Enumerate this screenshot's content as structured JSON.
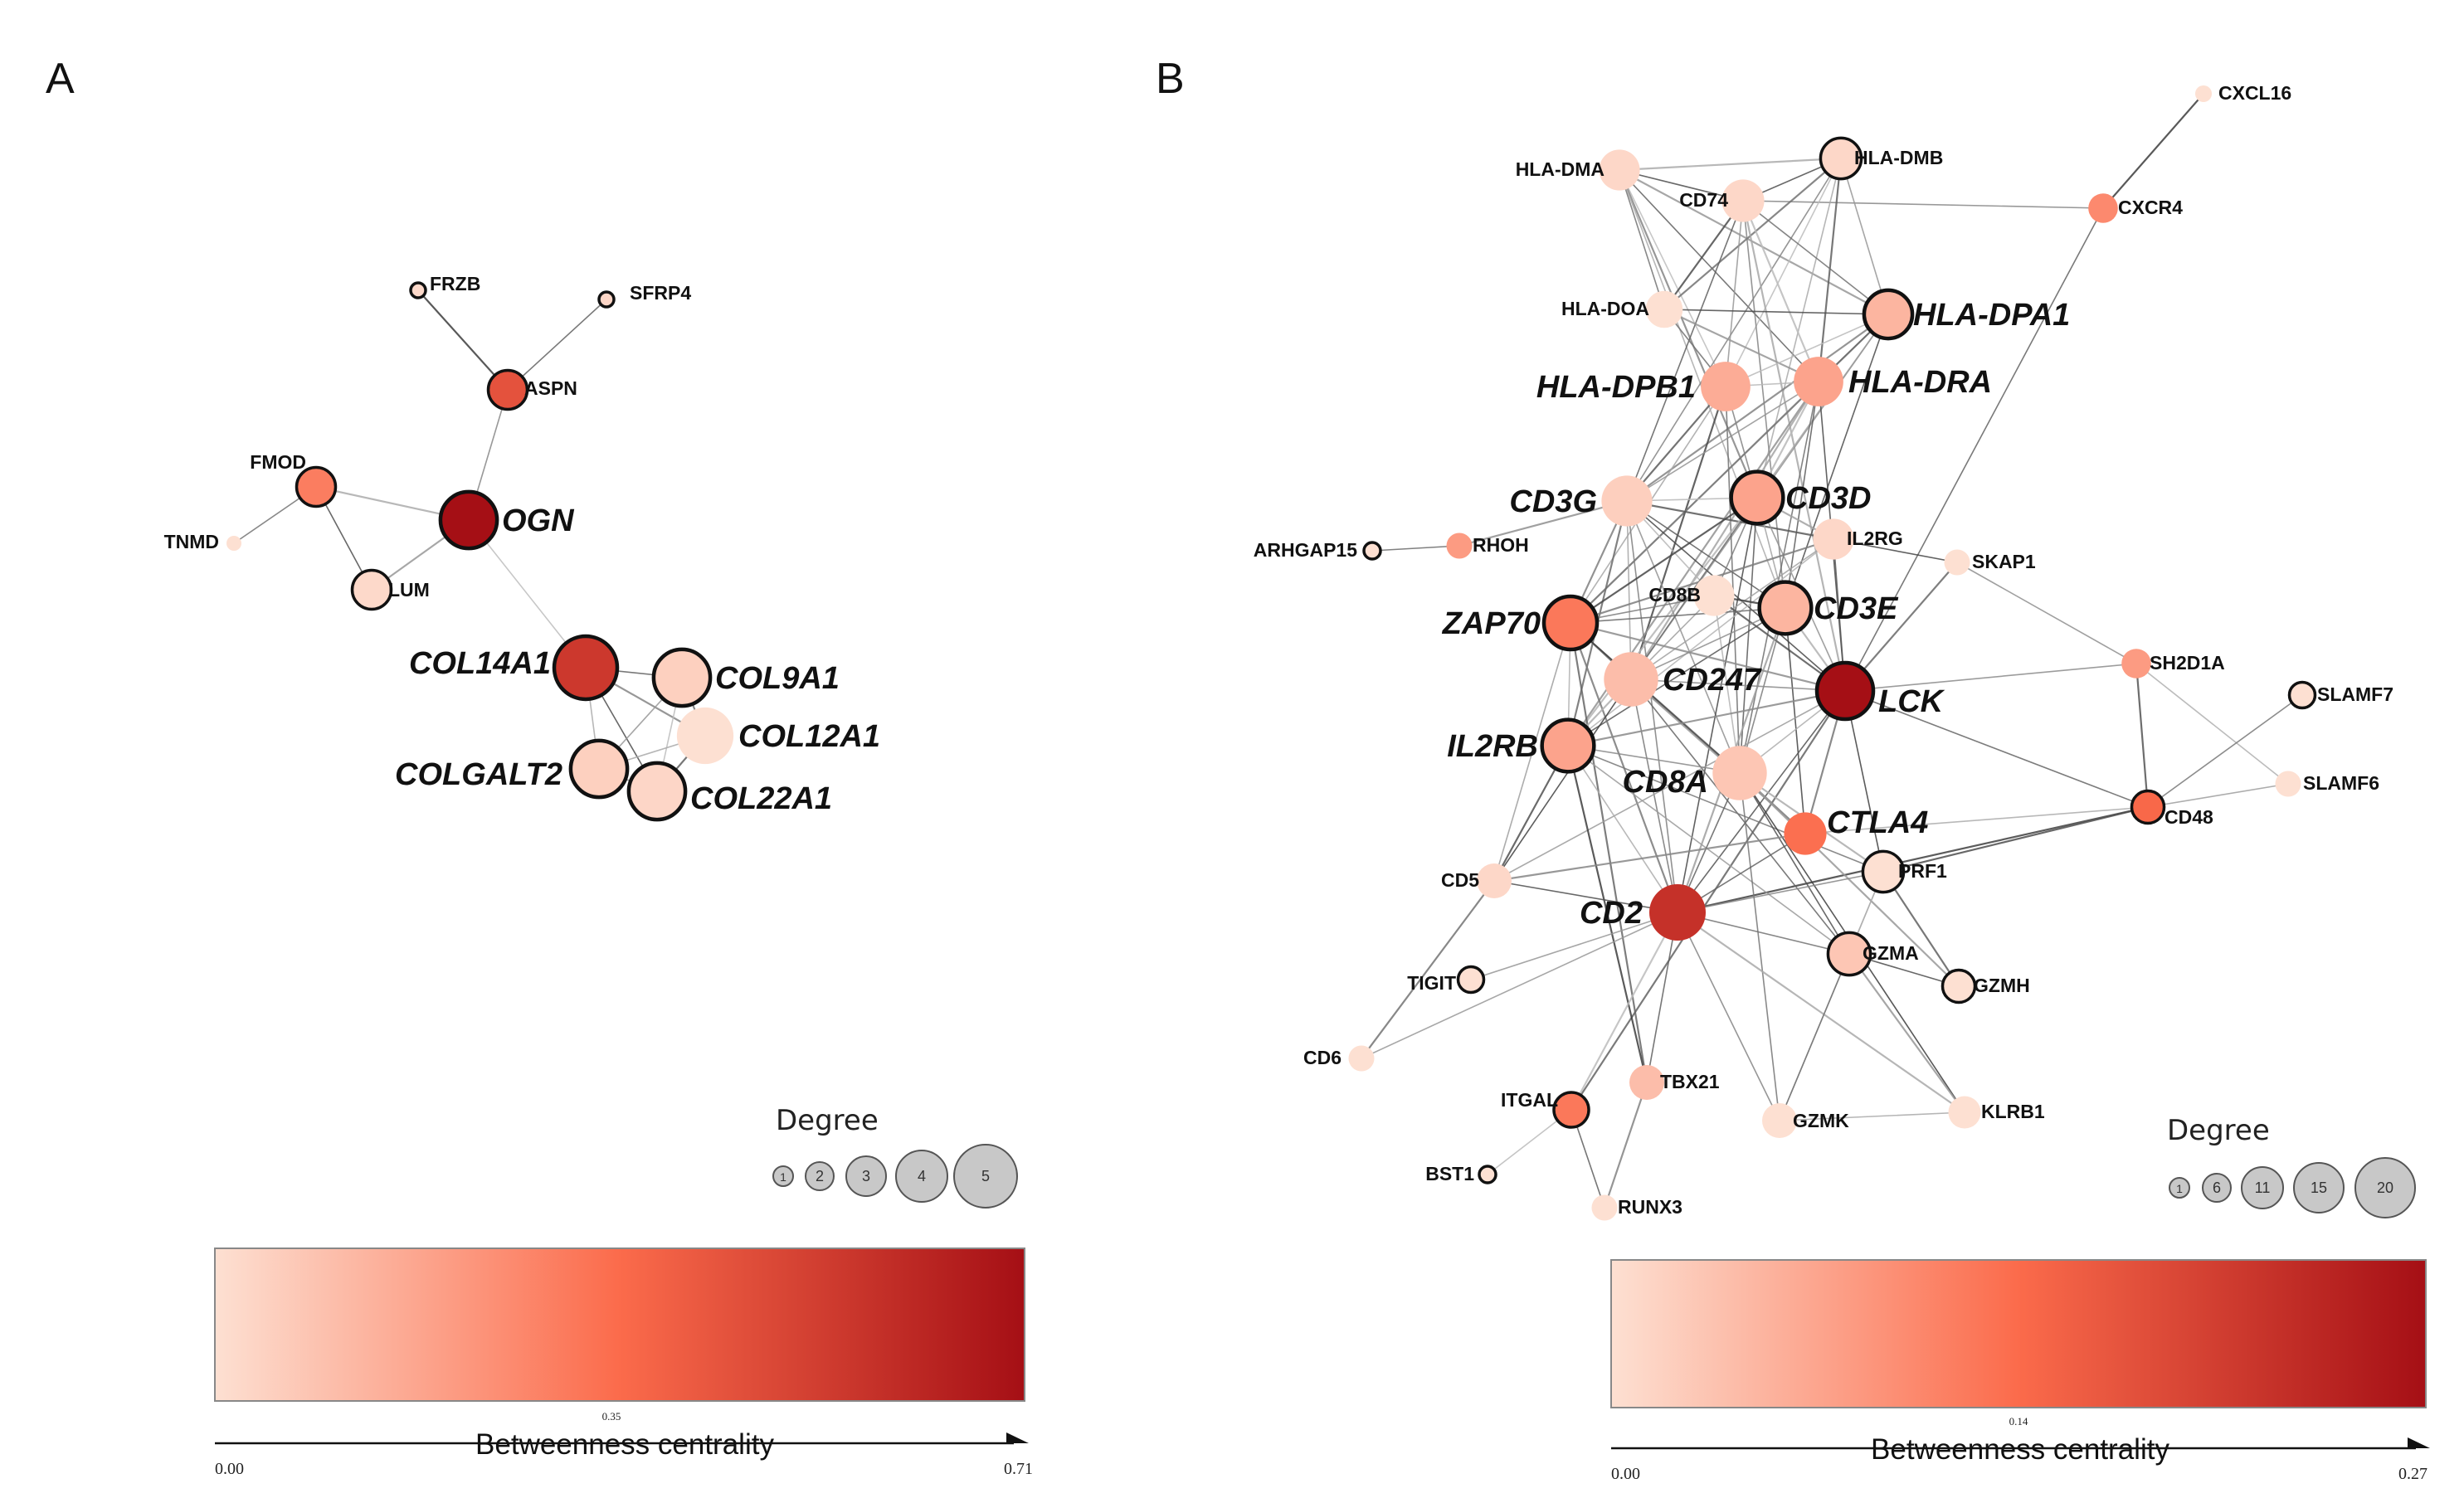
{
  "colors": {
    "low": "#fde0d2",
    "mid": "#fb6b4b",
    "high": "#a50f15",
    "edge": "#555555"
  },
  "panels": [
    {
      "id": "A",
      "letter": "A",
      "nodes": [
        {
          "name": "FRZB",
          "deg": 1,
          "bc": 0.02,
          "outline": true,
          "style": "small"
        },
        {
          "name": "SFRP4",
          "deg": 1,
          "bc": 0.03,
          "outline": true,
          "style": "small"
        },
        {
          "name": "ASPN",
          "deg": 2,
          "bc": 0.45,
          "outline": true,
          "style": "small"
        },
        {
          "name": "FMOD",
          "deg": 2,
          "bc": 0.3,
          "outline": true,
          "style": "small"
        },
        {
          "name": "TNMD",
          "deg": 1,
          "bc": 0.0,
          "outline": false,
          "style": "small"
        },
        {
          "name": "LUM",
          "deg": 2,
          "bc": 0.02,
          "outline": true,
          "style": "small"
        },
        {
          "name": "OGN",
          "deg": 4,
          "bc": 0.71,
          "outline": true,
          "style": "big"
        },
        {
          "name": "COL14A1",
          "deg": 5,
          "bc": 0.55,
          "outline": true,
          "style": "big"
        },
        {
          "name": "COL9A1",
          "deg": 4,
          "bc": 0.05,
          "outline": true,
          "style": "big"
        },
        {
          "name": "COL12A1",
          "deg": 4,
          "bc": 0.0,
          "outline": false,
          "style": "big"
        },
        {
          "name": "COLGALT2",
          "deg": 4,
          "bc": 0.05,
          "outline": true,
          "style": "big"
        },
        {
          "name": "COL22A1",
          "deg": 4,
          "bc": 0.03,
          "outline": true,
          "style": "big"
        }
      ],
      "edges": [
        [
          "FRZB",
          "ASPN"
        ],
        [
          "SFRP4",
          "ASPN"
        ],
        [
          "ASPN",
          "OGN"
        ],
        [
          "FMOD",
          "OGN"
        ],
        [
          "FMOD",
          "LUM"
        ],
        [
          "TNMD",
          "FMOD"
        ],
        [
          "LUM",
          "OGN"
        ],
        [
          "OGN",
          "COL14A1"
        ],
        [
          "COL14A1",
          "COL9A1"
        ],
        [
          "COL14A1",
          "COL12A1"
        ],
        [
          "COL14A1",
          "COLGALT2"
        ],
        [
          "COL14A1",
          "COL22A1"
        ],
        [
          "COL9A1",
          "COL12A1"
        ],
        [
          "COL9A1",
          "COLGALT2"
        ],
        [
          "COL9A1",
          "COL22A1"
        ],
        [
          "COL12A1",
          "COL22A1"
        ],
        [
          "COLGALT2",
          "COL22A1"
        ],
        [
          "COLGALT2",
          "COL12A1"
        ]
      ],
      "legend": {
        "degree_title": "Degree",
        "degree_values": [
          1,
          2,
          3,
          4,
          5
        ],
        "bc_min": "0.00",
        "bc_mid": "0.35",
        "bc_max": "0.71",
        "bc_title": "Betweenness centrality"
      }
    },
    {
      "id": "B",
      "letter": "B",
      "nodes": [
        {
          "name": "CXCL16",
          "deg": 1,
          "bc": 0.0,
          "outline": false,
          "style": "small"
        },
        {
          "name": "HLA-DMA",
          "deg": 8,
          "bc": 0.01,
          "outline": false,
          "style": "small"
        },
        {
          "name": "HLA-DMB",
          "deg": 8,
          "bc": 0.01,
          "outline": true,
          "style": "small"
        },
        {
          "name": "CD74",
          "deg": 9,
          "bc": 0.01,
          "outline": false,
          "style": "small"
        },
        {
          "name": "CXCR4",
          "deg": 3,
          "bc": 0.1,
          "outline": false,
          "style": "small"
        },
        {
          "name": "HLA-DOA",
          "deg": 6,
          "bc": 0.0,
          "outline": false,
          "style": "small"
        },
        {
          "name": "HLA-DPA1",
          "deg": 13,
          "bc": 0.05,
          "outline": true,
          "style": "big"
        },
        {
          "name": "HLA-DPB1",
          "deg": 14,
          "bc": 0.06,
          "outline": false,
          "style": "big"
        },
        {
          "name": "HLA-DRA",
          "deg": 14,
          "bc": 0.07,
          "outline": false,
          "style": "big"
        },
        {
          "name": "CD3G",
          "deg": 15,
          "bc": 0.02,
          "outline": false,
          "style": "big"
        },
        {
          "name": "CD3D",
          "deg": 16,
          "bc": 0.07,
          "outline": true,
          "style": "big"
        },
        {
          "name": "ARHGAP15",
          "deg": 1,
          "bc": 0.0,
          "outline": true,
          "style": "small"
        },
        {
          "name": "RHOH",
          "deg": 2,
          "bc": 0.08,
          "outline": false,
          "style": "small"
        },
        {
          "name": "IL2RG",
          "deg": 8,
          "bc": 0.01,
          "outline": false,
          "style": "small"
        },
        {
          "name": "SKAP1",
          "deg": 2,
          "bc": 0.0,
          "outline": false,
          "style": "small"
        },
        {
          "name": "CD8B",
          "deg": 8,
          "bc": 0.0,
          "outline": false,
          "style": "small"
        },
        {
          "name": "CD3E",
          "deg": 16,
          "bc": 0.05,
          "outline": true,
          "style": "big"
        },
        {
          "name": "ZAP70",
          "deg": 17,
          "bc": 0.12,
          "outline": true,
          "style": "big"
        },
        {
          "name": "SH2D1A",
          "deg": 3,
          "bc": 0.08,
          "outline": false,
          "style": "small"
        },
        {
          "name": "SLAMF7",
          "deg": 2,
          "bc": 0.0,
          "outline": true,
          "style": "small"
        },
        {
          "name": "CD247",
          "deg": 18,
          "bc": 0.04,
          "outline": false,
          "style": "big"
        },
        {
          "name": "LCK",
          "deg": 20,
          "bc": 0.27,
          "outline": true,
          "style": "big"
        },
        {
          "name": "IL2RB",
          "deg": 16,
          "bc": 0.07,
          "outline": true,
          "style": "big"
        },
        {
          "name": "CD8A",
          "deg": 18,
          "bc": 0.03,
          "outline": false,
          "style": "big"
        },
        {
          "name": "SLAMF6",
          "deg": 2,
          "bc": 0.0,
          "outline": false,
          "style": "small"
        },
        {
          "name": "CTLA4",
          "deg": 9,
          "bc": 0.13,
          "outline": false,
          "style": "big"
        },
        {
          "name": "CD48",
          "deg": 4,
          "bc": 0.14,
          "outline": true,
          "style": "small"
        },
        {
          "name": "CD5",
          "deg": 5,
          "bc": 0.01,
          "outline": false,
          "style": "small"
        },
        {
          "name": "PRF1",
          "deg": 8,
          "bc": 0.0,
          "outline": true,
          "style": "small"
        },
        {
          "name": "CD2",
          "deg": 20,
          "bc": 0.22,
          "outline": false,
          "style": "big"
        },
        {
          "name": "GZMA",
          "deg": 9,
          "bc": 0.03,
          "outline": true,
          "style": "small"
        },
        {
          "name": "TIGIT",
          "deg": 2,
          "bc": 0.0,
          "outline": true,
          "style": "small"
        },
        {
          "name": "GZMH",
          "deg": 4,
          "bc": 0.0,
          "outline": true,
          "style": "small"
        },
        {
          "name": "CD6",
          "deg": 2,
          "bc": 0.0,
          "outline": false,
          "style": "small"
        },
        {
          "name": "ITGAL",
          "deg": 5,
          "bc": 0.12,
          "outline": true,
          "style": "small"
        },
        {
          "name": "TBX21",
          "deg": 5,
          "bc": 0.04,
          "outline": false,
          "style": "small"
        },
        {
          "name": "GZMK",
          "deg": 5,
          "bc": 0.0,
          "outline": false,
          "style": "small"
        },
        {
          "name": "KLRB1",
          "deg": 4,
          "bc": 0.0,
          "outline": false,
          "style": "small"
        },
        {
          "name": "BST1",
          "deg": 1,
          "bc": 0.0,
          "outline": true,
          "style": "small"
        },
        {
          "name": "RUNX3",
          "deg": 2,
          "bc": 0.0,
          "outline": false,
          "style": "small"
        }
      ],
      "edges": [
        [
          "CXCL16",
          "CXCR4"
        ],
        [
          "CXCR4",
          "LCK"
        ],
        [
          "CXCR4",
          "CD74"
        ],
        [
          "HLA-DMA",
          "HLA-DMB"
        ],
        [
          "HLA-DMA",
          "CD74"
        ],
        [
          "HLA-DMA",
          "HLA-DOA"
        ],
        [
          "HLA-DMA",
          "HLA-DPA1"
        ],
        [
          "HLA-DMA",
          "HLA-DPB1"
        ],
        [
          "HLA-DMA",
          "HLA-DRA"
        ],
        [
          "HLA-DMA",
          "CD3D"
        ],
        [
          "HLA-DMA",
          "CD3E"
        ],
        [
          "HLA-DMB",
          "CD74"
        ],
        [
          "HLA-DMB",
          "HLA-DOA"
        ],
        [
          "HLA-DMB",
          "HLA-DPA1"
        ],
        [
          "HLA-DMB",
          "HLA-DPB1"
        ],
        [
          "HLA-DMB",
          "HLA-DRA"
        ],
        [
          "HLA-DMB",
          "CD3G"
        ],
        [
          "HLA-DMB",
          "CD3D"
        ],
        [
          "CD74",
          "HLA-DOA"
        ],
        [
          "CD74",
          "HLA-DPA1"
        ],
        [
          "CD74",
          "HLA-DPB1"
        ],
        [
          "CD74",
          "HLA-DRA"
        ],
        [
          "CD74",
          "CD3G"
        ],
        [
          "CD74",
          "CD3E"
        ],
        [
          "CD74",
          "LCK"
        ],
        [
          "HLA-DOA",
          "HLA-DPA1"
        ],
        [
          "HLA-DOA",
          "HLA-DPB1"
        ],
        [
          "HLA-DOA",
          "HLA-DRA"
        ],
        [
          "HLA-DPA1",
          "HLA-DPB1"
        ],
        [
          "HLA-DPA1",
          "HLA-DRA"
        ],
        [
          "HLA-DPA1",
          "CD3G"
        ],
        [
          "HLA-DPA1",
          "CD3D"
        ],
        [
          "HLA-DPA1",
          "CD3E"
        ],
        [
          "HLA-DPA1",
          "ZAP70"
        ],
        [
          "HLA-DPA1",
          "CD247"
        ],
        [
          "HLA-DPB1",
          "HLA-DRA"
        ],
        [
          "HLA-DPB1",
          "CD3G"
        ],
        [
          "HLA-DPB1",
          "CD3D"
        ],
        [
          "HLA-DPB1",
          "ZAP70"
        ],
        [
          "HLA-DPB1",
          "CD247"
        ],
        [
          "HLA-DPB1",
          "CD8A"
        ],
        [
          "HLA-DRA",
          "CD3G"
        ],
        [
          "HLA-DRA",
          "CD3D"
        ],
        [
          "HLA-DRA",
          "CD3E"
        ],
        [
          "HLA-DRA",
          "ZAP70"
        ],
        [
          "HLA-DRA",
          "CD247"
        ],
        [
          "HLA-DRA",
          "LCK"
        ],
        [
          "HLA-DRA",
          "CD8A"
        ],
        [
          "HLA-DRA",
          "IL2RB"
        ],
        [
          "CD3G",
          "CD3D"
        ],
        [
          "CD3G",
          "CD3E"
        ],
        [
          "CD3G",
          "ZAP70"
        ],
        [
          "CD3G",
          "CD247"
        ],
        [
          "CD3G",
          "LCK"
        ],
        [
          "CD3G",
          "IL2RB"
        ],
        [
          "CD3G",
          "CD8A"
        ],
        [
          "CD3G",
          "CD8B"
        ],
        [
          "CD3G",
          "IL2RG"
        ],
        [
          "CD3G",
          "CD2"
        ],
        [
          "CD3D",
          "CD3E"
        ],
        [
          "CD3D",
          "ZAP70"
        ],
        [
          "CD3D",
          "CD247"
        ],
        [
          "CD3D",
          "LCK"
        ],
        [
          "CD3D",
          "IL2RB"
        ],
        [
          "CD3D",
          "CD8A"
        ],
        [
          "CD3D",
          "CD8B"
        ],
        [
          "CD3D",
          "IL2RG"
        ],
        [
          "CD3D",
          "CD2"
        ],
        [
          "ARHGAP15",
          "RHOH"
        ],
        [
          "RHOH",
          "CD3G"
        ],
        [
          "IL2RG",
          "IL2RB"
        ],
        [
          "IL2RG",
          "LCK"
        ],
        [
          "IL2RG",
          "ZAP70"
        ],
        [
          "IL2RG",
          "CD247"
        ],
        [
          "IL2RG",
          "SKAP1"
        ],
        [
          "SKAP1",
          "LCK"
        ],
        [
          "SKAP1",
          "SH2D1A"
        ],
        [
          "CD8B",
          "CD8A"
        ],
        [
          "CD8B",
          "LCK"
        ],
        [
          "CD8B",
          "ZAP70"
        ],
        [
          "CD8B",
          "CD247"
        ],
        [
          "CD8B",
          "CD3E"
        ],
        [
          "CD3E",
          "ZAP70"
        ],
        [
          "CD3E",
          "CD247"
        ],
        [
          "CD3E",
          "LCK"
        ],
        [
          "CD3E",
          "IL2RB"
        ],
        [
          "CD3E",
          "CD8A"
        ],
        [
          "CD3E",
          "CD2"
        ],
        [
          "CD3E",
          "CTLA4"
        ],
        [
          "ZAP70",
          "CD247"
        ],
        [
          "ZAP70",
          "LCK"
        ],
        [
          "ZAP70",
          "IL2RB"
        ],
        [
          "ZAP70",
          "CD8A"
        ],
        [
          "ZAP70",
          "CD2"
        ],
        [
          "ZAP70",
          "CD5"
        ],
        [
          "ZAP70",
          "CTLA4"
        ],
        [
          "ZAP70",
          "TBX21"
        ],
        [
          "SH2D1A",
          "LCK"
        ],
        [
          "SH2D1A",
          "SLAMF6"
        ],
        [
          "SH2D1A",
          "CD48"
        ],
        [
          "SLAMF7",
          "CD48"
        ],
        [
          "SLAMF6",
          "CD48"
        ],
        [
          "CD48",
          "CD2"
        ],
        [
          "CD48",
          "LCK"
        ],
        [
          "CD247",
          "LCK"
        ],
        [
          "CD247",
          "IL2RB"
        ],
        [
          "CD247",
          "CD8A"
        ],
        [
          "CD247",
          "CD2"
        ],
        [
          "CD247",
          "CTLA4"
        ],
        [
          "CD247",
          "CD5"
        ],
        [
          "CD247",
          "GZMA"
        ],
        [
          "LCK",
          "IL2RB"
        ],
        [
          "LCK",
          "CD8A"
        ],
        [
          "LCK",
          "CD2"
        ],
        [
          "LCK",
          "CTLA4"
        ],
        [
          "LCK",
          "CD5"
        ],
        [
          "LCK",
          "PRF1"
        ],
        [
          "LCK",
          "ITGAL"
        ],
        [
          "IL2RB",
          "CD8A"
        ],
        [
          "IL2RB",
          "CD2"
        ],
        [
          "IL2RB",
          "CD5"
        ],
        [
          "IL2RB",
          "PRF1"
        ],
        [
          "IL2RB",
          "GZMA"
        ],
        [
          "IL2RB",
          "TBX21"
        ],
        [
          "CD8A",
          "CD2"
        ],
        [
          "CD8A",
          "CTLA4"
        ],
        [
          "CD8A",
          "PRF1"
        ],
        [
          "CD8A",
          "GZMA"
        ],
        [
          "CD8A",
          "GZMK"
        ],
        [
          "CD8A",
          "GZMH"
        ],
        [
          "CD8A",
          "KLRB1"
        ],
        [
          "CTLA4",
          "CD2"
        ],
        [
          "CTLA4",
          "CD5"
        ],
        [
          "CTLA4",
          "CD48"
        ],
        [
          "CD5",
          "CD2"
        ],
        [
          "CD5",
          "CD6"
        ],
        [
          "CD6",
          "CD2"
        ],
        [
          "PRF1",
          "GZMA"
        ],
        [
          "PRF1",
          "GZMH"
        ],
        [
          "PRF1",
          "CD2"
        ],
        [
          "PRF1",
          "GZMK"
        ],
        [
          "PRF1",
          "CD48"
        ],
        [
          "CD2",
          "GZMA"
        ],
        [
          "CD2",
          "TIGIT"
        ],
        [
          "CD2",
          "ITGAL"
        ],
        [
          "CD2",
          "TBX21"
        ],
        [
          "CD2",
          "GZMK"
        ],
        [
          "CD2",
          "KLRB1"
        ],
        [
          "GZMA",
          "GZMH"
        ],
        [
          "GZMA",
          "GZMK"
        ],
        [
          "GZMA",
          "KLRB1"
        ],
        [
          "ITGAL",
          "BST1"
        ],
        [
          "ITGAL",
          "RUNX3"
        ],
        [
          "TBX21",
          "RUNX3"
        ],
        [
          "GZMK",
          "KLRB1"
        ]
      ],
      "legend": {
        "degree_title": "Degree",
        "degree_values": [
          1,
          6,
          11,
          15,
          20
        ],
        "bc_min": "0.00",
        "bc_mid": "0.14",
        "bc_max": "0.27",
        "bc_title": "Betweenness centrality"
      }
    }
  ]
}
